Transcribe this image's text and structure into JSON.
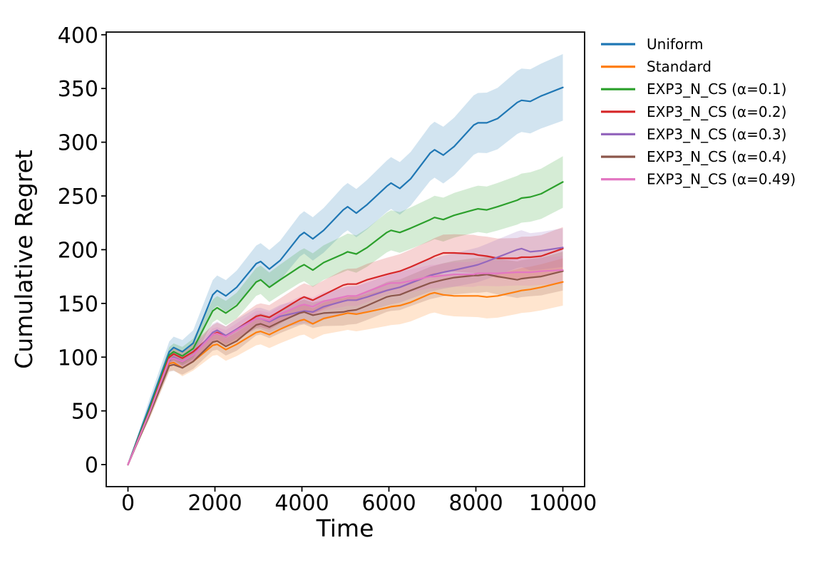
{
  "chart_data": {
    "type": "line",
    "title": "",
    "xlabel": "Time",
    "ylabel": "Cumulative Regret",
    "xlim": [
      -500,
      10500
    ],
    "ylim": [
      -20.5,
      402.5
    ],
    "x_ticks": [
      0,
      2000,
      4000,
      6000,
      8000,
      10000
    ],
    "y_ticks": [
      0,
      50,
      100,
      150,
      200,
      250,
      300,
      350,
      400
    ],
    "grid": false,
    "legend_position": "outside-right",
    "band_alpha": 0.2,
    "x": [
      0,
      500,
      950,
      1050,
      1250,
      1500,
      1950,
      2050,
      2250,
      2500,
      2950,
      3050,
      3250,
      3500,
      3950,
      4050,
      4250,
      4500,
      4950,
      5050,
      5250,
      5500,
      5950,
      6050,
      6250,
      6500,
      6950,
      7050,
      7250,
      7500,
      7950,
      8050,
      8250,
      8500,
      8950,
      9050,
      9250,
      9500,
      10000
    ],
    "series": [
      {
        "name": "Uniform",
        "color": "#1f77b4",
        "band_max": 31,
        "values": [
          0,
          55,
          105,
          109,
          105,
          113,
          158,
          162,
          157,
          165,
          187,
          189,
          182,
          190,
          213,
          216,
          210,
          218,
          237,
          240,
          234,
          242,
          259,
          262,
          257,
          266,
          290,
          293,
          288,
          296,
          316,
          318,
          318,
          322,
          337,
          339,
          338,
          343,
          351
        ]
      },
      {
        "name": "Standard",
        "color": "#ff7f0e",
        "band_max": 22,
        "values": [
          0,
          48,
          94,
          95,
          90,
          96,
          111,
          112,
          107,
          112,
          123,
          124,
          121,
          126,
          134,
          135,
          131,
          136,
          140,
          141,
          140,
          142,
          146,
          147,
          148,
          151,
          159,
          160,
          158,
          157,
          157,
          157,
          156,
          157,
          161,
          162,
          163,
          165,
          170
        ]
      },
      {
        "name": "EXP3_N_CS (α=0.1)",
        "color": "#2ca02c",
        "band_max": 24,
        "values": [
          0,
          52,
          102,
          105,
          101,
          108,
          143,
          146,
          141,
          148,
          170,
          172,
          165,
          172,
          184,
          186,
          181,
          188,
          196,
          198,
          196,
          202,
          216,
          218,
          216,
          220,
          228,
          230,
          228,
          232,
          237,
          238,
          237,
          240,
          246,
          248,
          249,
          252,
          263
        ]
      },
      {
        "name": "EXP3_N_CS (α=0.2)",
        "color": "#d62728",
        "band_max": 20,
        "values": [
          0,
          50,
          100,
          103,
          99,
          105,
          121,
          123,
          119,
          126,
          138,
          139,
          137,
          143,
          154,
          156,
          153,
          158,
          167,
          168,
          168,
          172,
          177,
          178,
          180,
          184,
          192,
          194,
          197,
          197,
          196,
          195,
          194,
          192,
          192,
          193,
          193,
          194,
          201
        ]
      },
      {
        "name": "EXP3_N_CS (α=0.3)",
        "color": "#9467bd",
        "band_max": 18,
        "values": [
          0,
          49,
          97,
          100,
          96,
          102,
          123,
          125,
          120,
          126,
          136,
          136,
          133,
          138,
          142,
          143,
          142,
          147,
          152,
          153,
          153,
          156,
          162,
          163,
          165,
          169,
          176,
          177,
          179,
          181,
          185,
          186,
          189,
          193,
          200,
          201,
          198,
          199,
          202
        ]
      },
      {
        "name": "EXP3_N_CS (α=0.4)",
        "color": "#8c564b",
        "band_max": 18,
        "values": [
          0,
          47,
          92,
          93,
          90,
          96,
          114,
          115,
          110,
          115,
          130,
          131,
          128,
          133,
          141,
          142,
          139,
          141,
          142,
          143,
          144,
          148,
          156,
          157,
          158,
          162,
          169,
          170,
          172,
          174,
          176,
          176,
          177,
          175,
          172,
          173,
          174,
          175,
          180
        ]
      },
      {
        "name": "EXP3_N_CS (α=0.49)",
        "color": "#e377c2",
        "band_max": 13,
        "values": [
          0,
          49,
          98,
          99,
          96,
          102,
          121,
          122,
          119,
          125,
          136,
          136,
          134,
          140,
          148,
          149,
          147,
          152,
          156,
          157,
          157,
          161,
          168,
          169,
          169,
          171,
          175,
          175,
          176,
          177,
          177,
          178,
          178,
          178,
          179,
          179,
          179,
          180,
          181
        ]
      }
    ]
  }
}
